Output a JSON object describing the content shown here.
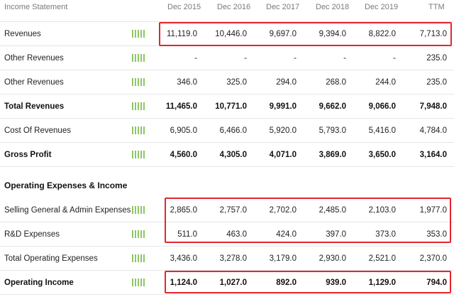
{
  "header": {
    "title": "Income Statement",
    "columns": [
      "Dec 2015",
      "Dec 2016",
      "Dec 2017",
      "Dec 2018",
      "Dec 2019",
      "TTM"
    ]
  },
  "rows_top": [
    {
      "label": "Revenues",
      "values": [
        "11,119.0",
        "10,446.0",
        "9,697.0",
        "9,394.0",
        "8,822.0",
        "7,713.0"
      ],
      "bold": false
    },
    {
      "label": "Other Revenues",
      "values": [
        "-",
        "-",
        "-",
        "-",
        "-",
        "235.0"
      ],
      "bold": false
    },
    {
      "label": "Other Revenues",
      "values": [
        "346.0",
        "325.0",
        "294.0",
        "268.0",
        "244.0",
        "235.0"
      ],
      "bold": false
    },
    {
      "label": "Total Revenues",
      "values": [
        "11,465.0",
        "10,771.0",
        "9,991.0",
        "9,662.0",
        "9,066.0",
        "7,948.0"
      ],
      "bold": true
    },
    {
      "label": "Cost Of Revenues",
      "values": [
        "6,905.0",
        "6,466.0",
        "5,920.0",
        "5,793.0",
        "5,416.0",
        "4,784.0"
      ],
      "bold": false
    },
    {
      "label": "Gross Profit",
      "values": [
        "4,560.0",
        "4,305.0",
        "4,071.0",
        "3,869.0",
        "3,650.0",
        "3,164.0"
      ],
      "bold": true
    }
  ],
  "section": {
    "title": "Operating Expenses & Income"
  },
  "rows_bottom": [
    {
      "label": "Selling General & Admin Expenses",
      "values": [
        "2,865.0",
        "2,757.0",
        "2,702.0",
        "2,485.0",
        "2,103.0",
        "1,977.0"
      ],
      "bold": false
    },
    {
      "label": "R&D Expenses",
      "values": [
        "511.0",
        "463.0",
        "424.0",
        "397.0",
        "373.0",
        "353.0"
      ],
      "bold": false
    },
    {
      "label": "Total Operating Expenses",
      "values": [
        "3,436.0",
        "3,278.0",
        "3,179.0",
        "2,930.0",
        "2,521.0",
        "2,370.0"
      ],
      "bold": false
    },
    {
      "label": "Operating Income",
      "values": [
        "1,124.0",
        "1,027.0",
        "892.0",
        "939.0",
        "1,129.0",
        "794.0"
      ],
      "bold": true
    }
  ],
  "colors": {
    "highlight": "#e3262f",
    "sparkline": "#8dc663",
    "grid": "#e6e6e6"
  },
  "icons": {
    "row_chart": "mini-bar-chart-icon"
  }
}
